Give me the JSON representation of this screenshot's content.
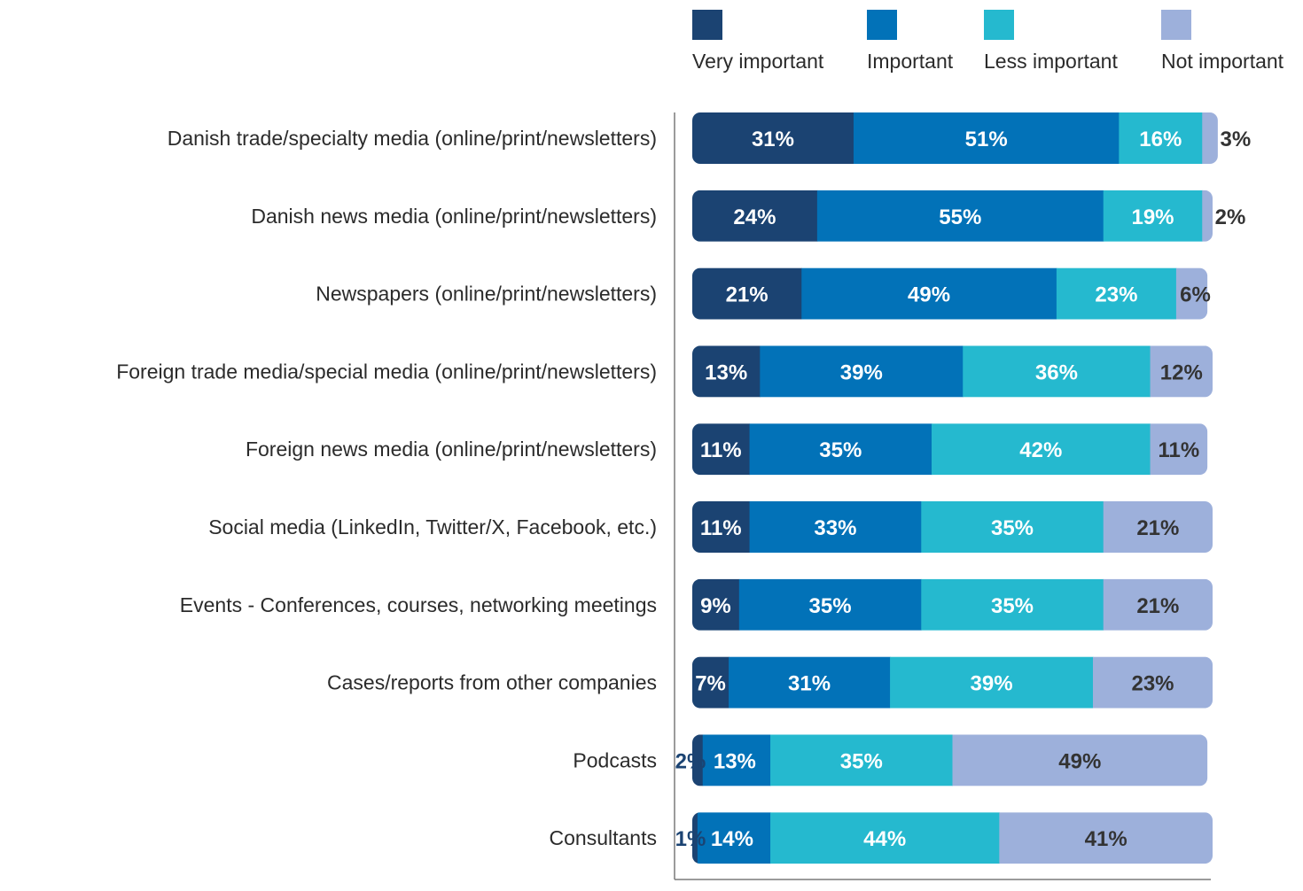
{
  "chart_data": {
    "type": "bar",
    "orientation": "horizontal",
    "stacked": true,
    "title": "",
    "xlabel": "",
    "ylabel": "",
    "xlim": [
      0,
      100
    ],
    "grid": false,
    "legend_position": "top-right",
    "categories": [
      "Danish trade/specialty media (online/print/newsletters)",
      "Danish news media (online/print/newsletters)",
      "Newspapers (online/print/newsletters)",
      "Foreign trade media/special media (online/print/newsletters)",
      "Foreign news media (online/print/newsletters)",
      "Social media (LinkedIn, Twitter/X, Facebook, etc.)",
      "Events - Conferences, courses, networking meetings",
      "Cases/reports from other companies",
      "Podcasts",
      "Consultants"
    ],
    "series": [
      {
        "name": "Very important",
        "color": "#1b4372",
        "label_color": "#ffffff",
        "values": [
          31,
          24,
          21,
          13,
          11,
          11,
          9,
          7,
          2,
          1
        ]
      },
      {
        "name": "Important",
        "color": "#0272b8",
        "label_color": "#ffffff",
        "values": [
          51,
          55,
          49,
          39,
          35,
          33,
          35,
          31,
          13,
          14
        ]
      },
      {
        "name": "Less important",
        "color": "#25b9cf",
        "label_color": "#ffffff",
        "values": [
          16,
          19,
          23,
          36,
          42,
          35,
          35,
          39,
          35,
          44
        ]
      },
      {
        "name": "Not important",
        "color": "#9db0db",
        "label_color": "#333333",
        "values": [
          3,
          2,
          6,
          12,
          11,
          21,
          21,
          23,
          49,
          41
        ]
      }
    ],
    "value_suffix": "%",
    "small_label_colors": {
      "dark": "#1b4372",
      "default": "#333333"
    }
  }
}
